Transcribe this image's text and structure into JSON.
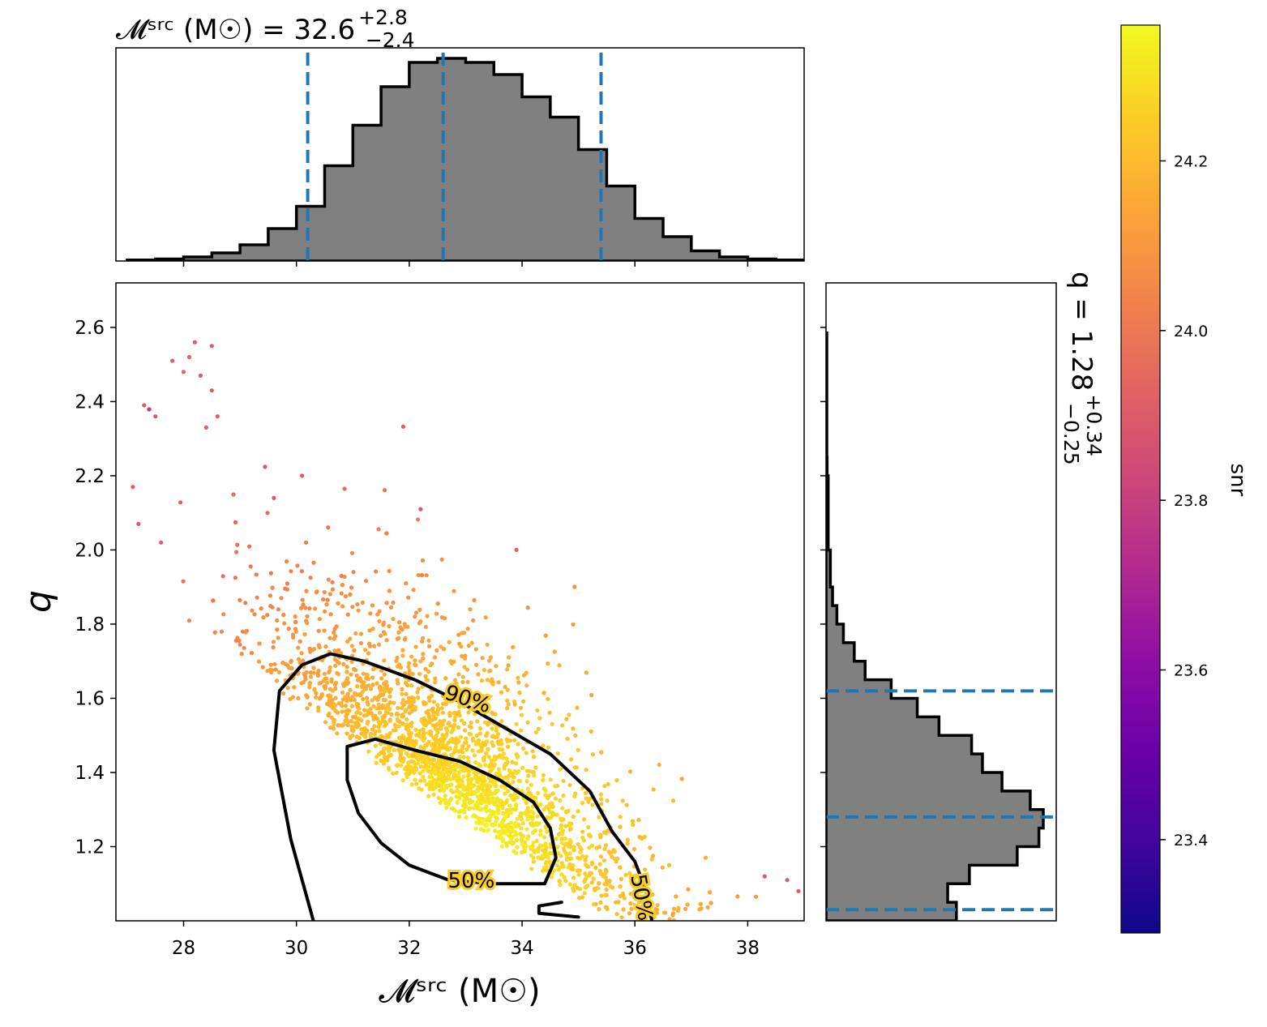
{
  "chart_data": [
    {
      "panel": "marginal-top",
      "type": "histogram",
      "title": "𝓜ˢʳᶜ (M☉) = 32.6",
      "title_super": "+2.8",
      "title_sub": "−2.4",
      "x": [
        27.0,
        27.5,
        28.0,
        28.5,
        29.0,
        29.5,
        30.0,
        30.5,
        31.0,
        31.5,
        32.0,
        32.5,
        33.0,
        33.5,
        34.0,
        34.5,
        35.0,
        35.5,
        36.0,
        36.5,
        37.0,
        37.5,
        38.0,
        38.5
      ],
      "relative_density": [
        0.005,
        0.01,
        0.02,
        0.04,
        0.08,
        0.16,
        0.27,
        0.47,
        0.67,
        0.86,
        0.98,
        1.0,
        0.98,
        0.92,
        0.81,
        0.71,
        0.55,
        0.37,
        0.21,
        0.12,
        0.05,
        0.02,
        0.01,
        0.005
      ],
      "median": 32.6,
      "lower_90": 30.2,
      "upper_90": 35.4,
      "xlim": [
        26.8,
        39.0
      ],
      "quantile_line_color": "#1f77b4",
      "fill_color": "#808080"
    },
    {
      "panel": "main",
      "type": "scatter",
      "xlabel": "𝓜ˢʳᶜ (M☉)",
      "ylabel": "q",
      "xlim": [
        26.8,
        39.0
      ],
      "ylim": [
        1.0,
        2.72
      ],
      "xticks": [
        "28",
        "30",
        "32",
        "34",
        "36",
        "38"
      ],
      "yticks": [
        "1.2",
        "1.4",
        "1.6",
        "1.8",
        "2.0",
        "2.2",
        "2.4",
        "2.6"
      ],
      "points_drawn": 2600,
      "outlier_points": [
        {
          "x": 28.2,
          "y": 2.56
        },
        {
          "x": 28.5,
          "y": 2.55
        },
        {
          "x": 28.1,
          "y": 2.52
        },
        {
          "x": 27.8,
          "y": 2.51
        },
        {
          "x": 28.0,
          "y": 2.48
        },
        {
          "x": 28.3,
          "y": 2.47
        },
        {
          "x": 28.5,
          "y": 2.43
        },
        {
          "x": 27.3,
          "y": 2.39
        },
        {
          "x": 27.5,
          "y": 2.36
        },
        {
          "x": 28.6,
          "y": 2.36
        },
        {
          "x": 28.4,
          "y": 2.33
        },
        {
          "x": 27.1,
          "y": 2.17
        },
        {
          "x": 27.2,
          "y": 2.07
        },
        {
          "x": 27.6,
          "y": 2.02
        },
        {
          "x": 29.6,
          "y": 2.14
        },
        {
          "x": 30.1,
          "y": 2.2
        },
        {
          "x": 32.2,
          "y": 2.11
        },
        {
          "x": 33.9,
          "y": 2.0
        },
        {
          "x": 38.3,
          "y": 1.12
        },
        {
          "x": 38.7,
          "y": 1.11
        },
        {
          "x": 38.9,
          "y": 1.08
        }
      ],
      "contours": [
        {
          "label": "90%",
          "label_at": {
            "x": 33.0,
            "y": 1.58
          },
          "path": [
            [
              30.3,
              1.0
            ],
            [
              29.9,
              1.22
            ],
            [
              29.6,
              1.46
            ],
            [
              29.7,
              1.62
            ],
            [
              30.1,
              1.69
            ],
            [
              30.6,
              1.72
            ],
            [
              31.2,
              1.7
            ],
            [
              32.1,
              1.65
            ],
            [
              32.9,
              1.59
            ],
            [
              33.7,
              1.52
            ],
            [
              34.5,
              1.45
            ],
            [
              35.2,
              1.35
            ],
            [
              35.6,
              1.24
            ],
            [
              36.0,
              1.16
            ],
            [
              36.2,
              1.08
            ],
            [
              36.3,
              1.0
            ]
          ]
        },
        {
          "label": "50%",
          "label_at": {
            "x": 33.1,
            "y": 1.09
          },
          "path": [
            [
              34.4,
              1.1
            ],
            [
              34.6,
              1.17
            ],
            [
              34.5,
              1.25
            ],
            [
              34.2,
              1.32
            ],
            [
              33.6,
              1.38
            ],
            [
              32.9,
              1.43
            ],
            [
              32.1,
              1.46
            ],
            [
              31.4,
              1.49
            ],
            [
              30.9,
              1.47
            ],
            [
              30.9,
              1.38
            ],
            [
              31.1,
              1.29
            ],
            [
              31.5,
              1.21
            ],
            [
              32.0,
              1.15
            ],
            [
              32.7,
              1.11
            ],
            [
              33.5,
              1.1
            ],
            [
              34.0,
              1.1
            ],
            [
              34.4,
              1.1
            ]
          ]
        },
        {
          "label": "50%",
          "label_at": {
            "x": 36.0,
            "y": 1.06
          },
          "path": [
            [
              34.7,
              1.05
            ],
            [
              34.3,
              1.04
            ],
            [
              34.3,
              1.02
            ],
            [
              35.0,
              1.01
            ]
          ]
        }
      ],
      "colormap": "plasma"
    },
    {
      "panel": "marginal-right",
      "type": "histogram",
      "orientation": "horizontal",
      "title": "q = 1.28",
      "title_super": "+0.34",
      "title_sub": "−0.25",
      "y": [
        1.0,
        1.05,
        1.1,
        1.15,
        1.2,
        1.25,
        1.3,
        1.35,
        1.4,
        1.45,
        1.5,
        1.55,
        1.6,
        1.65,
        1.7,
        1.75,
        1.8,
        1.85,
        1.9,
        2.0,
        2.2
      ],
      "relative_density": [
        0.6,
        0.56,
        0.66,
        0.88,
        0.98,
        1.0,
        0.94,
        0.81,
        0.72,
        0.67,
        0.52,
        0.42,
        0.3,
        0.18,
        0.13,
        0.08,
        0.05,
        0.03,
        0.02,
        0.01,
        0.005
      ],
      "median": 1.28,
      "lower_90": 1.03,
      "upper_90": 1.62,
      "quantile_line_color": "#1f77b4",
      "fill_color": "#808080"
    },
    {
      "panel": "colorbar",
      "type": "colorbar",
      "label": "snr",
      "range": [
        23.29,
        24.36
      ],
      "ticks": [
        "23.4",
        "23.6",
        "23.8",
        "24.0",
        "24.2"
      ],
      "colormap": "plasma"
    }
  ]
}
